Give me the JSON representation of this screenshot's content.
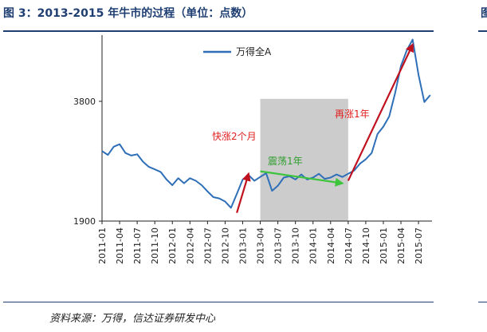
{
  "header": {
    "title": "图 3：2013-2015 年牛市的过程（单位：点数）",
    "edge_glyph": "图"
  },
  "footer": {
    "source": "资料来源：万得，信达证券研发中心"
  },
  "colors": {
    "title": "#1f3f73",
    "series_line": "#2e6fb8",
    "shade": "#cccccc",
    "arrow_red": "#c0111f",
    "arrow_green": "#3cc43c",
    "label_red": "#e01e1e",
    "label_green": "#2e9e2e"
  },
  "chart_data": {
    "type": "line",
    "title": "",
    "xlabel": "",
    "ylabel": "",
    "ylim": [
      1900,
      4800
    ],
    "yticks": [
      "1900",
      "3800"
    ],
    "xticks": [
      "2011-01",
      "2011-04",
      "2011-07",
      "2011-10",
      "2012-01",
      "2012-04",
      "2012-07",
      "2012-10",
      "2013-01",
      "2013-04",
      "2013-07",
      "2013-10",
      "2014-01",
      "2014-04",
      "2014-07",
      "2014-10",
      "2015-01",
      "2015-04",
      "2015-07"
    ],
    "legend": "top-center",
    "series": [
      {
        "name": "万得全A",
        "x": [
          "2011-01",
          "2011-02",
          "2011-03",
          "2011-04",
          "2011-05",
          "2011-06",
          "2011-07",
          "2011-08",
          "2011-09",
          "2011-10",
          "2011-11",
          "2011-12",
          "2012-01",
          "2012-02",
          "2012-03",
          "2012-04",
          "2012-05",
          "2012-06",
          "2012-07",
          "2012-08",
          "2012-09",
          "2012-10",
          "2012-11",
          "2012-12",
          "2013-01",
          "2013-02",
          "2013-03",
          "2013-04",
          "2013-05",
          "2013-06",
          "2013-07",
          "2013-08",
          "2013-09",
          "2013-10",
          "2013-11",
          "2013-12",
          "2014-01",
          "2014-02",
          "2014-03",
          "2014-04",
          "2014-05",
          "2014-06",
          "2014-07",
          "2014-08",
          "2014-09",
          "2014-10",
          "2014-11",
          "2014-12",
          "2015-01",
          "2015-02",
          "2015-03",
          "2015-04",
          "2015-05",
          "2015-06",
          "2015-07",
          "2015-08",
          "2015-09"
        ],
        "values": [
          3010,
          2950,
          3080,
          3120,
          2980,
          2940,
          2960,
          2840,
          2760,
          2720,
          2680,
          2560,
          2470,
          2580,
          2500,
          2580,
          2540,
          2470,
          2370,
          2280,
          2260,
          2210,
          2110,
          2330,
          2560,
          2630,
          2540,
          2600,
          2660,
          2380,
          2460,
          2590,
          2610,
          2560,
          2640,
          2560,
          2590,
          2650,
          2570,
          2590,
          2640,
          2600,
          2650,
          2700,
          2810,
          2880,
          2980,
          3280,
          3400,
          3560,
          3930,
          4360,
          4610,
          4780,
          4220,
          3790,
          3900
        ]
      }
    ],
    "shaded_region": {
      "from": "2013-04",
      "to": "2014-07"
    },
    "annotations": [
      {
        "text": "快涨2个月",
        "color": "red",
        "arrow_from": "2012-12",
        "arrow_to": "2013-02",
        "y_from": 2030,
        "y_to": 2650
      },
      {
        "text": "震荡1年",
        "color": "green",
        "arrow_from": "2013-04",
        "arrow_to": "2014-06",
        "y_from": 2690,
        "y_to": 2500
      },
      {
        "text": "再涨1年",
        "color": "red",
        "arrow_from": "2014-07",
        "arrow_to": "2015-06",
        "y_from": 2540,
        "y_to": 4700
      }
    ]
  }
}
